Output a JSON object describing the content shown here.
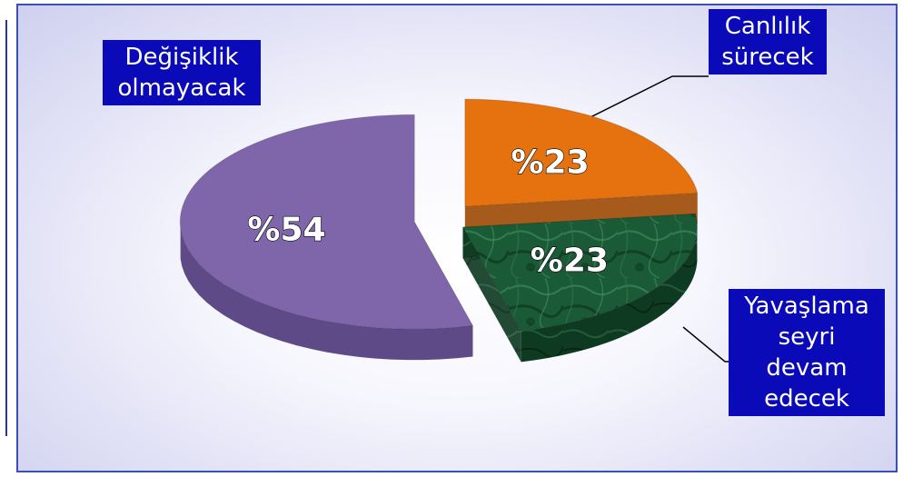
{
  "chart_data": {
    "type": "pie",
    "categories": [
      "Değişiklik olmayacak",
      "Canlılık sürecek",
      "Yavaşlama seyri devam edecek"
    ],
    "values": [
      54,
      23,
      23
    ],
    "data_labels": [
      "%54",
      "%23",
      "%23"
    ],
    "colors": [
      "#7f66aa",
      "#e5710f",
      "#1a5a36"
    ],
    "exploded": true,
    "three_d": true
  },
  "labels": {
    "degisiklik": "Değişiklik\nolmayacak",
    "canlilik": "Canlılık\nsürecek",
    "yavaslama": "Yavaşlama\nseyri\ndevam\nedecek"
  }
}
